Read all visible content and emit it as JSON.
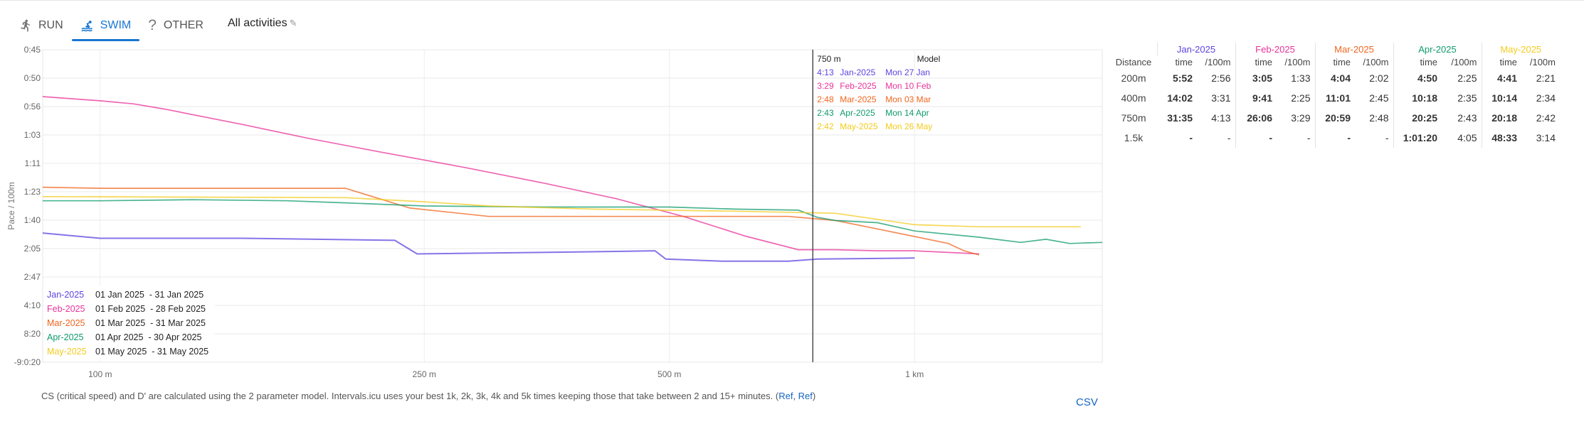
{
  "tabs": [
    {
      "label": "RUN",
      "icon": "run-icon"
    },
    {
      "label": "SWIM",
      "icon": "swim-icon"
    },
    {
      "label": "OTHER",
      "icon": "question-icon"
    }
  ],
  "active_tab": "SWIM",
  "all_activities_label": "All activities",
  "note_text": "CS (critical speed) and D' are calculated using the 2 parameter model. Intervals.icu uses your best 1k, 2k, 3k, 4k and 5k times keeping those that take between 2 and 15+ minutes.",
  "note_ref1": "Ref",
  "note_ref2": "Ref",
  "csv_label": "CSV",
  "tooltip": {
    "distance": "750 m",
    "header_right": "Model",
    "rows": [
      {
        "pace": "4:13",
        "period": "Jan-2025",
        "date": "Mon 27 Jan"
      },
      {
        "pace": "3:29",
        "period": "Feb-2025",
        "date": "Mon 10 Feb"
      },
      {
        "pace": "2:48",
        "period": "Mar-2025",
        "date": "Mon 03 Mar"
      },
      {
        "pace": "2:43",
        "period": "Apr-2025",
        "date": "Mon 14 Apr"
      },
      {
        "pace": "2:42",
        "period": "May-2025",
        "date": "Mon 26 May"
      }
    ]
  },
  "legend": [
    {
      "name": "Jan-2025",
      "range": "01 Jan 2025  - 31 Jan 2025"
    },
    {
      "name": "Feb-2025",
      "range": "01 Feb 2025  - 28 Feb 2025"
    },
    {
      "name": "Mar-2025",
      "range": "01 Mar 2025  - 31 Mar 2025"
    },
    {
      "name": "Apr-2025",
      "range": "01 Apr 2025  - 30 Apr 2025"
    },
    {
      "name": "May-2025",
      "range": "01 May 2025  - 31 May 2025"
    }
  ],
  "colors": {
    "Jan-2025": "#5b45e0",
    "Feb-2025": "#e8339a",
    "Mar-2025": "#f0661f",
    "Apr-2025": "#0f9b6c",
    "May-2025": "#f2cb1d",
    "accent": "#1976d2",
    "link": "#1565c0"
  },
  "pace_table": {
    "distance_header": "Distance",
    "months": [
      "Jan-2025",
      "Feb-2025",
      "Mar-2025",
      "Apr-2025",
      "May-2025"
    ],
    "sub_time": "time",
    "sub_pace": "/100m",
    "rows": [
      {
        "distance": "200m",
        "cells": [
          [
            "5:52",
            "2:56"
          ],
          [
            "3:05",
            "1:33"
          ],
          [
            "4:04",
            "2:02"
          ],
          [
            "4:50",
            "2:25"
          ],
          [
            "4:41",
            "2:21"
          ]
        ]
      },
      {
        "distance": "400m",
        "cells": [
          [
            "14:02",
            "3:31"
          ],
          [
            "9:41",
            "2:25"
          ],
          [
            "11:01",
            "2:45"
          ],
          [
            "10:18",
            "2:35"
          ],
          [
            "10:14",
            "2:34"
          ]
        ]
      },
      {
        "distance": "750m",
        "cells": [
          [
            "31:35",
            "4:13"
          ],
          [
            "26:06",
            "3:29"
          ],
          [
            "20:59",
            "2:48"
          ],
          [
            "20:25",
            "2:43"
          ],
          [
            "20:18",
            "2:42"
          ]
        ]
      },
      {
        "distance": "1.5k",
        "cells": [
          [
            "-",
            "-"
          ],
          [
            "-",
            "-"
          ],
          [
            "-",
            "-"
          ],
          [
            "1:01:20",
            "4:05"
          ],
          [
            "48:33",
            "3:14"
          ]
        ]
      }
    ]
  },
  "chart_data": {
    "type": "line",
    "ylabel": "Pace / 100m",
    "xlabel": "",
    "x_scale": "log",
    "xlim": [
      85,
      1700
    ],
    "y_ticks": [
      "0:45",
      "0:50",
      "0:56",
      "1:03",
      "1:11",
      "1:23",
      "1:40",
      "2:05",
      "2:47",
      "4:10",
      "8:20",
      "-9:0:20"
    ],
    "x_ticks": [
      {
        "label": "100 m",
        "value": 100
      },
      {
        "label": "250 m",
        "value": 250
      },
      {
        "label": "500 m",
        "value": 500
      },
      {
        "label": "1 km",
        "value": 1000
      }
    ],
    "cursor_x": 750,
    "series": [
      {
        "name": "Jan-2025",
        "points": [
          [
            85,
            176
          ],
          [
            100,
            181
          ],
          [
            150,
            181
          ],
          [
            230,
            183
          ],
          [
            245,
            196
          ],
          [
            400,
            194
          ],
          [
            480,
            193
          ],
          [
            495,
            201
          ],
          [
            580,
            203
          ],
          [
            660,
            203
          ],
          [
            700,
            203
          ],
          [
            760,
            201
          ],
          [
            1000,
            200
          ]
        ]
      },
      {
        "name": "Feb-2025",
        "points": [
          [
            85,
            45
          ],
          [
            100,
            49
          ],
          [
            110,
            52
          ],
          [
            120,
            57
          ],
          [
            150,
            72
          ],
          [
            180,
            85
          ],
          [
            220,
            98
          ],
          [
            280,
            113
          ],
          [
            350,
            128
          ],
          [
            430,
            143
          ],
          [
            520,
            160
          ],
          [
            620,
            179
          ],
          [
            720,
            192
          ],
          [
            800,
            192
          ],
          [
            900,
            193
          ],
          [
            1000,
            193
          ],
          [
            1200,
            196
          ]
        ]
      },
      {
        "name": "Mar-2025",
        "points": [
          [
            85,
            132
          ],
          [
            100,
            133
          ],
          [
            150,
            133
          ],
          [
            200,
            133
          ],
          [
            240,
            152
          ],
          [
            300,
            160
          ],
          [
            400,
            160
          ],
          [
            500,
            160
          ],
          [
            600,
            160
          ],
          [
            700,
            160
          ],
          [
            800,
            164
          ],
          [
            900,
            172
          ],
          [
            1100,
            186
          ],
          [
            1150,
            193
          ],
          [
            1200,
            197
          ]
        ]
      },
      {
        "name": "Apr-2025",
        "points": [
          [
            85,
            145
          ],
          [
            100,
            145
          ],
          [
            130,
            144
          ],
          [
            170,
            145
          ],
          [
            200,
            147
          ],
          [
            250,
            150
          ],
          [
            350,
            151
          ],
          [
            450,
            151
          ],
          [
            500,
            151
          ],
          [
            600,
            153
          ],
          [
            720,
            154
          ],
          [
            760,
            161
          ],
          [
            800,
            164
          ],
          [
            900,
            166
          ],
          [
            1000,
            174
          ],
          [
            1200,
            180
          ],
          [
            1350,
            185
          ],
          [
            1450,
            182
          ],
          [
            1550,
            186
          ],
          [
            1700,
            185
          ]
        ]
      },
      {
        "name": "May-2025",
        "points": [
          [
            85,
            141
          ],
          [
            200,
            142
          ],
          [
            250,
            146
          ],
          [
            300,
            150
          ],
          [
            400,
            153
          ],
          [
            600,
            155
          ],
          [
            800,
            157
          ],
          [
            1000,
            168
          ],
          [
            1200,
            170
          ],
          [
            1600,
            170
          ]
        ]
      }
    ]
  }
}
